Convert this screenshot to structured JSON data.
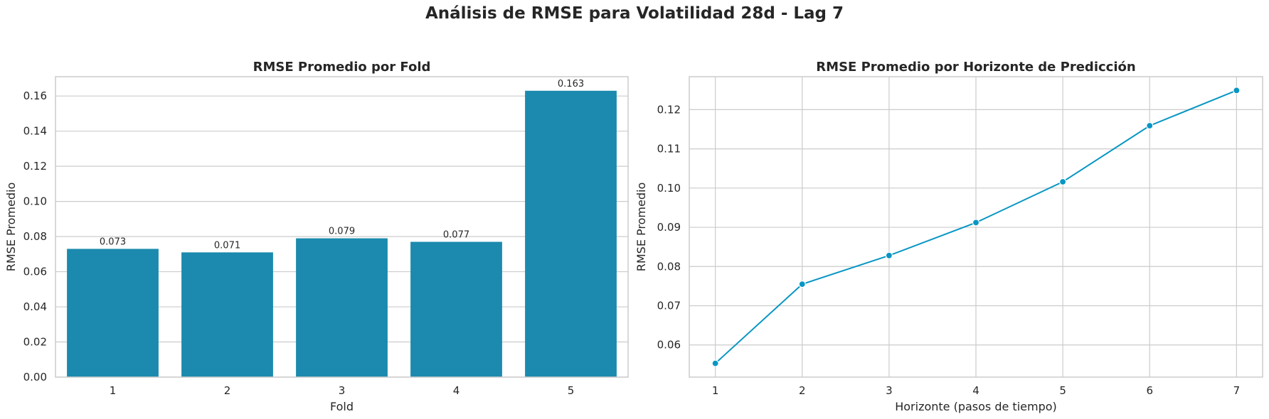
{
  "figure": {
    "suptitle": "Análisis de RMSE para Volatilidad 28d - Lag 7"
  },
  "chart_data": [
    {
      "type": "bar",
      "title": "RMSE Promedio por Fold",
      "xlabel": "Fold",
      "ylabel": "RMSE Promedio",
      "categories": [
        "1",
        "2",
        "3",
        "4",
        "5"
      ],
      "values": [
        0.073,
        0.071,
        0.079,
        0.077,
        0.163
      ],
      "value_labels": [
        "0.073",
        "0.071",
        "0.079",
        "0.077",
        "0.163"
      ],
      "ylim": [
        0,
        0.171
      ],
      "yticks": [
        0.0,
        0.02,
        0.04,
        0.06,
        0.08,
        0.1,
        0.12,
        0.14,
        0.16
      ],
      "ytick_labels": [
        "0.00",
        "0.02",
        "0.04",
        "0.06",
        "0.08",
        "0.10",
        "0.12",
        "0.14",
        "0.16"
      ],
      "grid": "horizontal",
      "color": "#1b8aae"
    },
    {
      "type": "line",
      "title": "RMSE Promedio por Horizonte de Predicción",
      "xlabel": "Horizonte (pasos de tiempo)",
      "ylabel": "RMSE Promedio",
      "x": [
        1,
        2,
        3,
        4,
        5,
        6,
        7
      ],
      "xtick_labels": [
        "1",
        "2",
        "3",
        "4",
        "5",
        "6",
        "7"
      ],
      "values": [
        0.0553,
        0.0755,
        0.0828,
        0.0912,
        0.1016,
        0.1159,
        0.1249
      ],
      "xlim": [
        0.7,
        7.3
      ],
      "ylim": [
        0.0518,
        0.1284
      ],
      "yticks": [
        0.06,
        0.07,
        0.08,
        0.09,
        0.1,
        0.11,
        0.12
      ],
      "ytick_labels": [
        "0.06",
        "0.07",
        "0.08",
        "0.09",
        "0.10",
        "0.11",
        "0.12"
      ],
      "grid": "both",
      "marker": "circle",
      "color": "#0796c4"
    }
  ]
}
